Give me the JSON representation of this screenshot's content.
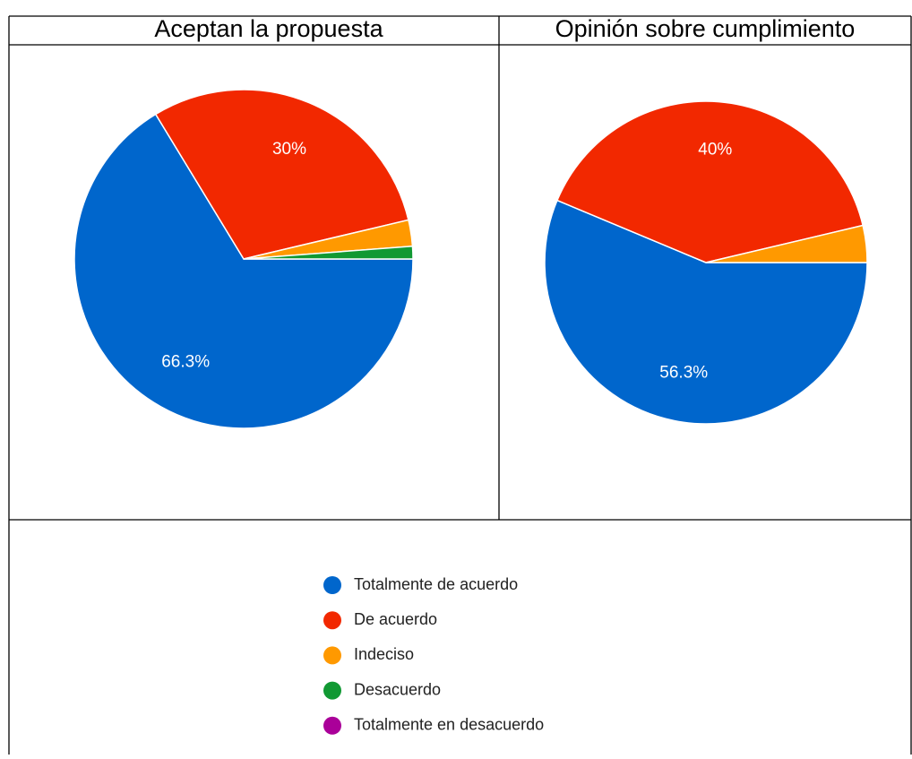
{
  "chart_data": {
    "type": "pie",
    "categories": [
      "Totalmente de acuerdo",
      "De acuerdo",
      "Indeciso",
      "Desacuerdo",
      "Totalmente en desacuerdo"
    ],
    "colors": [
      "#0066cc",
      "#f22800",
      "#ff9900",
      "#119933",
      "#aa0099"
    ],
    "series": [
      {
        "name": "Aceptan la propuesta",
        "values": [
          66.3,
          30,
          2.5,
          1.2,
          0
        ],
        "value_labels": [
          "66.3%",
          "30%",
          null,
          null,
          null
        ]
      },
      {
        "name": "Opinión sobre cumplimiento",
        "values": [
          56.3,
          40,
          3.7,
          0,
          0
        ],
        "value_labels": [
          "56.3%",
          "40%",
          null,
          null,
          null
        ]
      }
    ]
  }
}
